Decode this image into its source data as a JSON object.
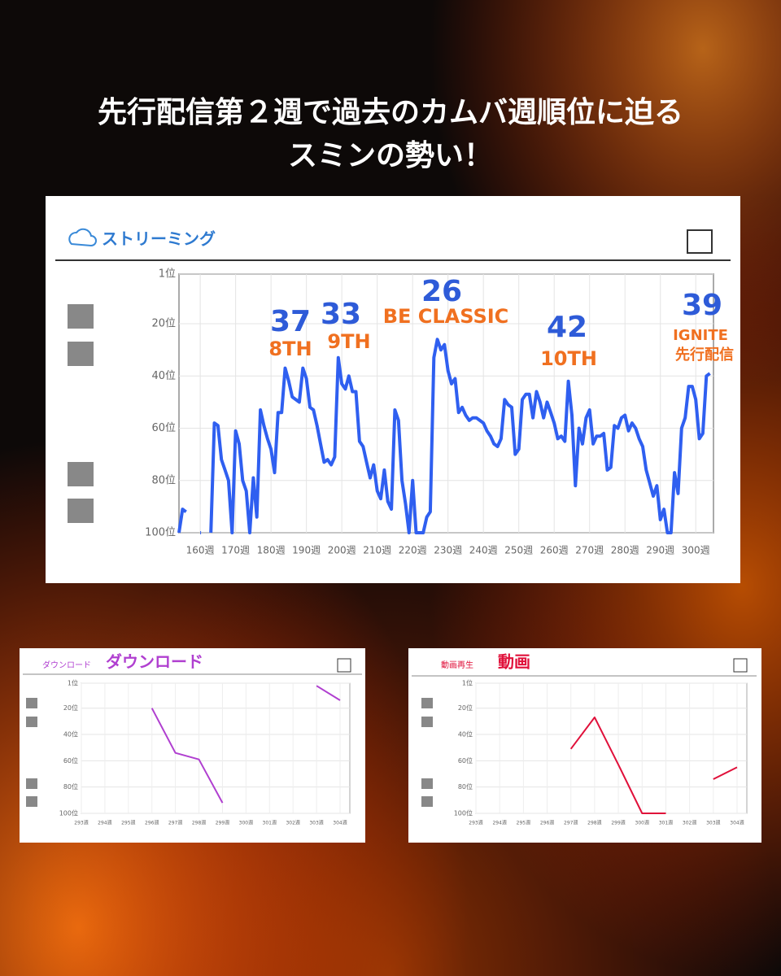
{
  "title_lines": [
    "先行配信第２週で過去のカムバ週順位に迫る",
    "スミンの勢い！"
  ],
  "chart_data": [
    {
      "type": "line",
      "title": "ストリーミング",
      "x": [
        154,
        155,
        156,
        157,
        158,
        159,
        160,
        161,
        162,
        163,
        164,
        165,
        166,
        167,
        168,
        169,
        170,
        171,
        172,
        173,
        174,
        175,
        176,
        177,
        178,
        179,
        180,
        181,
        182,
        183,
        184,
        185,
        186,
        187,
        188,
        189,
        190,
        191,
        192,
        193,
        194,
        195,
        196,
        197,
        198,
        199,
        200,
        201,
        202,
        203,
        204,
        205,
        206,
        207,
        208,
        209,
        210,
        211,
        212,
        213,
        214,
        215,
        216,
        217,
        218,
        219,
        220,
        221,
        222,
        223,
        224,
        225,
        226,
        227,
        228,
        229,
        230,
        231,
        232,
        233,
        234,
        235,
        236,
        237,
        238,
        239,
        240,
        241,
        242,
        243,
        244,
        245,
        246,
        247,
        248,
        249,
        250,
        251,
        252,
        253,
        254,
        255,
        256,
        257,
        258,
        259,
        260,
        261,
        262,
        263,
        264,
        265,
        266,
        267,
        268,
        269,
        270,
        271,
        272,
        273,
        274,
        275,
        276,
        277,
        278,
        279,
        280,
        281,
        282,
        283,
        284,
        285,
        286,
        287,
        288,
        289,
        290,
        291,
        292,
        293,
        294,
        295,
        296,
        297,
        298,
        299,
        300,
        301,
        302,
        303,
        304
      ],
      "series": [
        {
          "color": "#2f5ff0",
          "values": [
            100,
            91,
            92,
            null,
            null,
            null,
            100,
            null,
            null,
            100,
            58,
            59,
            72,
            76,
            80,
            100,
            61,
            66,
            80,
            84,
            100,
            79,
            94,
            53,
            59,
            64,
            68,
            77,
            54,
            54,
            37,
            42,
            48,
            49,
            50,
            37,
            41,
            52,
            53,
            59,
            66,
            73,
            72,
            74,
            71,
            33,
            43,
            45,
            40,
            46,
            46,
            65,
            67,
            73,
            79,
            74,
            84,
            87,
            76,
            88,
            91,
            53,
            57,
            80,
            89,
            100,
            80,
            100,
            100,
            100,
            94,
            92,
            33,
            26,
            30,
            28,
            38,
            43,
            41,
            54,
            52,
            55,
            57,
            56,
            56,
            57,
            58,
            61,
            63,
            66,
            67,
            64,
            49,
            51,
            52,
            70,
            68,
            49,
            47,
            47,
            56,
            46,
            50,
            56,
            50,
            54,
            58,
            64,
            63,
            65,
            42,
            55,
            82,
            60,
            66,
            56,
            53,
            66,
            63,
            63,
            62,
            76,
            75,
            59,
            60,
            56,
            55,
            61,
            58,
            60,
            64,
            67,
            76,
            81,
            86,
            82,
            95,
            91,
            100,
            100,
            77,
            85,
            60,
            56,
            44,
            44,
            49,
            64,
            62,
            40,
            39
          ]
        }
      ],
      "xlim": [
        154,
        305
      ],
      "xticks": [
        {
          "value": 160,
          "label": "160週"
        },
        {
          "value": 170,
          "label": "170週"
        },
        {
          "value": 180,
          "label": "180週"
        },
        {
          "value": 190,
          "label": "190週"
        },
        {
          "value": 200,
          "label": "200週"
        },
        {
          "value": 210,
          "label": "210週"
        },
        {
          "value": 220,
          "label": "220週"
        },
        {
          "value": 230,
          "label": "230週"
        },
        {
          "value": 240,
          "label": "240週"
        },
        {
          "value": 250,
          "label": "250週"
        },
        {
          "value": 260,
          "label": "260週"
        },
        {
          "value": 270,
          "label": "270週"
        },
        {
          "value": 280,
          "label": "280週"
        },
        {
          "value": 290,
          "label": "290週"
        },
        {
          "value": 300,
          "label": "300週"
        }
      ],
      "ylim": [
        100,
        1
      ],
      "yticks": [
        {
          "value": 1,
          "label": "1位"
        },
        {
          "value": 20,
          "label": "20位"
        },
        {
          "value": 40,
          "label": "40位"
        },
        {
          "value": 60,
          "label": "60位"
        },
        {
          "value": 80,
          "label": "80位"
        },
        {
          "value": 100,
          "label": "100位"
        }
      ],
      "grid": true,
      "annotations": [
        {
          "value": "37",
          "note": "8TH"
        },
        {
          "value": "33",
          "note": "9TH"
        },
        {
          "value": "26",
          "note": "BE CLASSIC"
        },
        {
          "value": "42",
          "note": "10TH"
        },
        {
          "value": "39",
          "note": "IGNITE",
          "note2": "先行配信"
        }
      ]
    },
    {
      "type": "line",
      "title": "ダウンロード",
      "label": "ダウンロード",
      "categories": [
        "293週",
        "294週",
        "295週",
        "296週",
        "297週",
        "298週",
        "299週",
        "300週",
        "301週",
        "302週",
        "303週",
        "304週"
      ],
      "series": [
        {
          "color": "#b03fd0",
          "values": [
            null,
            null,
            null,
            20,
            54,
            59,
            92,
            null,
            null,
            null,
            3,
            14
          ]
        }
      ],
      "ylim": [
        100,
        1
      ],
      "yticks": [
        {
          "value": 1,
          "label": "1位"
        },
        {
          "value": 20,
          "label": "20位"
        },
        {
          "value": 40,
          "label": "40位"
        },
        {
          "value": 60,
          "label": "60位"
        },
        {
          "value": 80,
          "label": "80位"
        },
        {
          "value": 100,
          "label": "100位"
        }
      ],
      "grid": true
    },
    {
      "type": "line",
      "title": "動画",
      "label": "動画再生",
      "categories": [
        "293週",
        "294週",
        "295週",
        "296週",
        "297週",
        "298週",
        "299週",
        "300週",
        "301週",
        "302週",
        "303週",
        "304週"
      ],
      "series": [
        {
          "color": "#e0103a",
          "values": [
            null,
            null,
            null,
            null,
            51,
            27,
            63,
            100,
            100,
            null,
            74,
            65
          ]
        }
      ],
      "ylim": [
        100,
        1
      ],
      "yticks": [
        {
          "value": 1,
          "label": "1位"
        },
        {
          "value": 20,
          "label": "20位"
        },
        {
          "value": 40,
          "label": "40位"
        },
        {
          "value": 60,
          "label": "60位"
        },
        {
          "value": 80,
          "label": "80位"
        },
        {
          "value": 100,
          "label": "100位"
        }
      ],
      "grid": true
    }
  ]
}
